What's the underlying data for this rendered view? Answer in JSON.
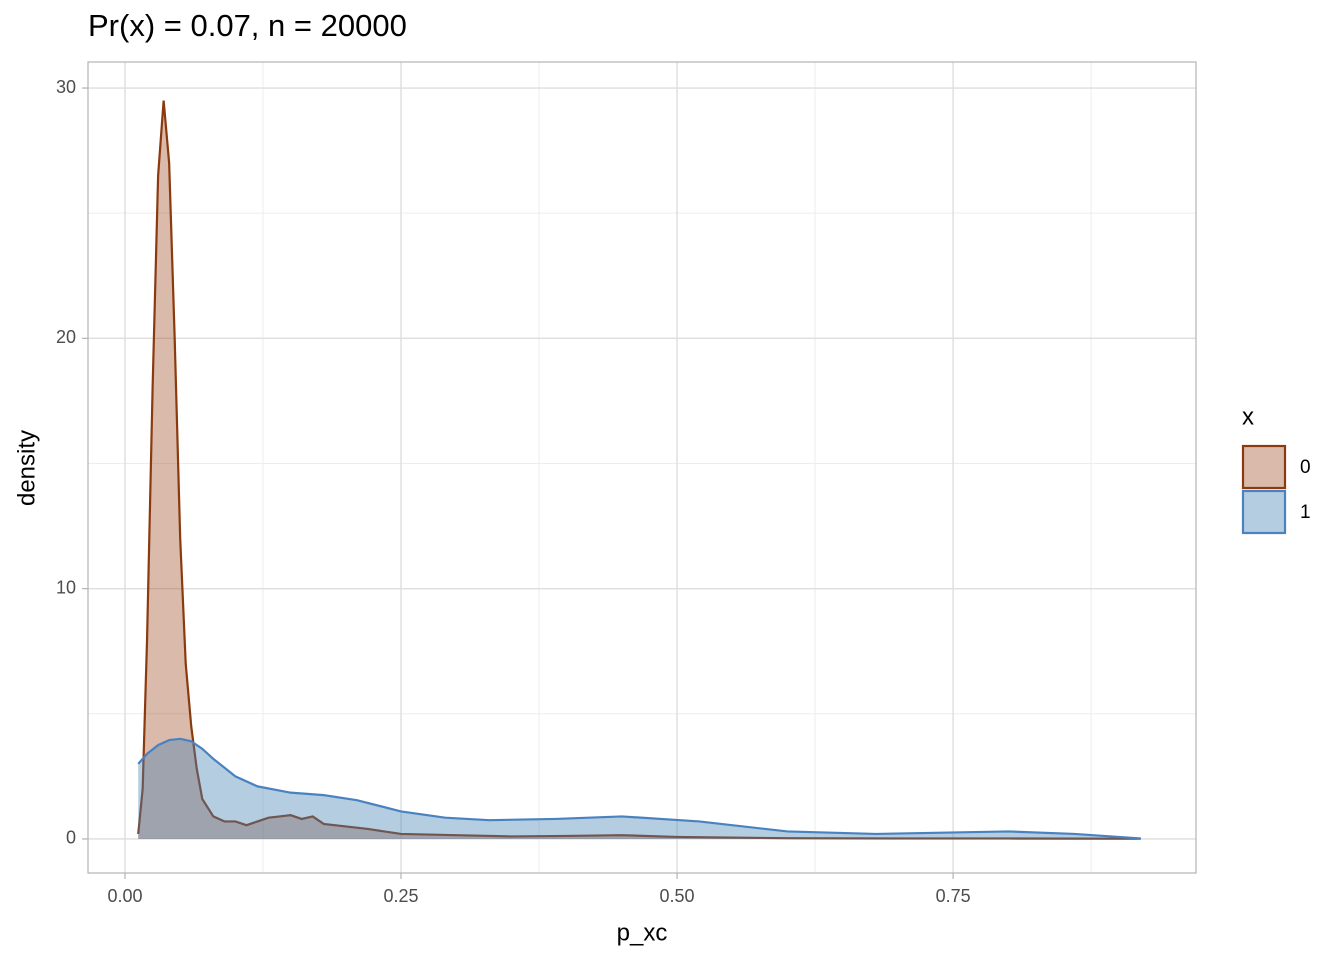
{
  "chart_data": {
    "type": "density",
    "title": "Pr(x) = 0.07, n = 20000",
    "xlabel": "p_xc",
    "ylabel": "density",
    "legend_title": "x",
    "legend": "right",
    "grid": true,
    "xlim": [
      -0.0335,
      0.97
    ],
    "ylim": [
      -1.36,
      31.04
    ],
    "xticks": [
      {
        "value": 0,
        "label": "0.00"
      },
      {
        "value": 0.25,
        "label": "0.25"
      },
      {
        "value": 0.5,
        "label": "0.50"
      },
      {
        "value": 0.75,
        "label": "0.75"
      }
    ],
    "yticks": [
      0,
      10,
      20,
      30
    ],
    "series": [
      {
        "name": "0",
        "color": "#8b3a0e",
        "fill": "#a0522d",
        "x": [
          0.012,
          0.016,
          0.02,
          0.025,
          0.03,
          0.035,
          0.04,
          0.045,
          0.05,
          0.055,
          0.06,
          0.065,
          0.07,
          0.08,
          0.09,
          0.1,
          0.11,
          0.12,
          0.13,
          0.14,
          0.15,
          0.16,
          0.17,
          0.18,
          0.2,
          0.22,
          0.25,
          0.3,
          0.35,
          0.4,
          0.45,
          0.5,
          0.6,
          0.7,
          0.8,
          0.92
        ],
        "values": [
          0.2,
          2,
          8,
          18,
          26.5,
          29.5,
          27,
          20,
          12,
          7,
          4.5,
          2.8,
          1.6,
          0.9,
          0.7,
          0.7,
          0.55,
          0.7,
          0.85,
          0.9,
          0.95,
          0.8,
          0.9,
          0.6,
          0.5,
          0.4,
          0.2,
          0.15,
          0.1,
          0.12,
          0.15,
          0.08,
          0.03,
          0.02,
          0.02,
          0.01
        ]
      },
      {
        "name": "1",
        "color": "#4a82c0",
        "fill": "#4682b4",
        "x": [
          0.012,
          0.02,
          0.03,
          0.04,
          0.05,
          0.06,
          0.07,
          0.08,
          0.1,
          0.12,
          0.15,
          0.18,
          0.21,
          0.25,
          0.29,
          0.33,
          0.39,
          0.45,
          0.52,
          0.6,
          0.68,
          0.74,
          0.8,
          0.86,
          0.92
        ],
        "values": [
          3,
          3.4,
          3.75,
          3.95,
          4,
          3.9,
          3.6,
          3.2,
          2.5,
          2.1,
          1.85,
          1.75,
          1.55,
          1.1,
          0.85,
          0.75,
          0.8,
          0.9,
          0.7,
          0.3,
          0.2,
          0.25,
          0.3,
          0.2,
          0.02
        ]
      }
    ]
  }
}
